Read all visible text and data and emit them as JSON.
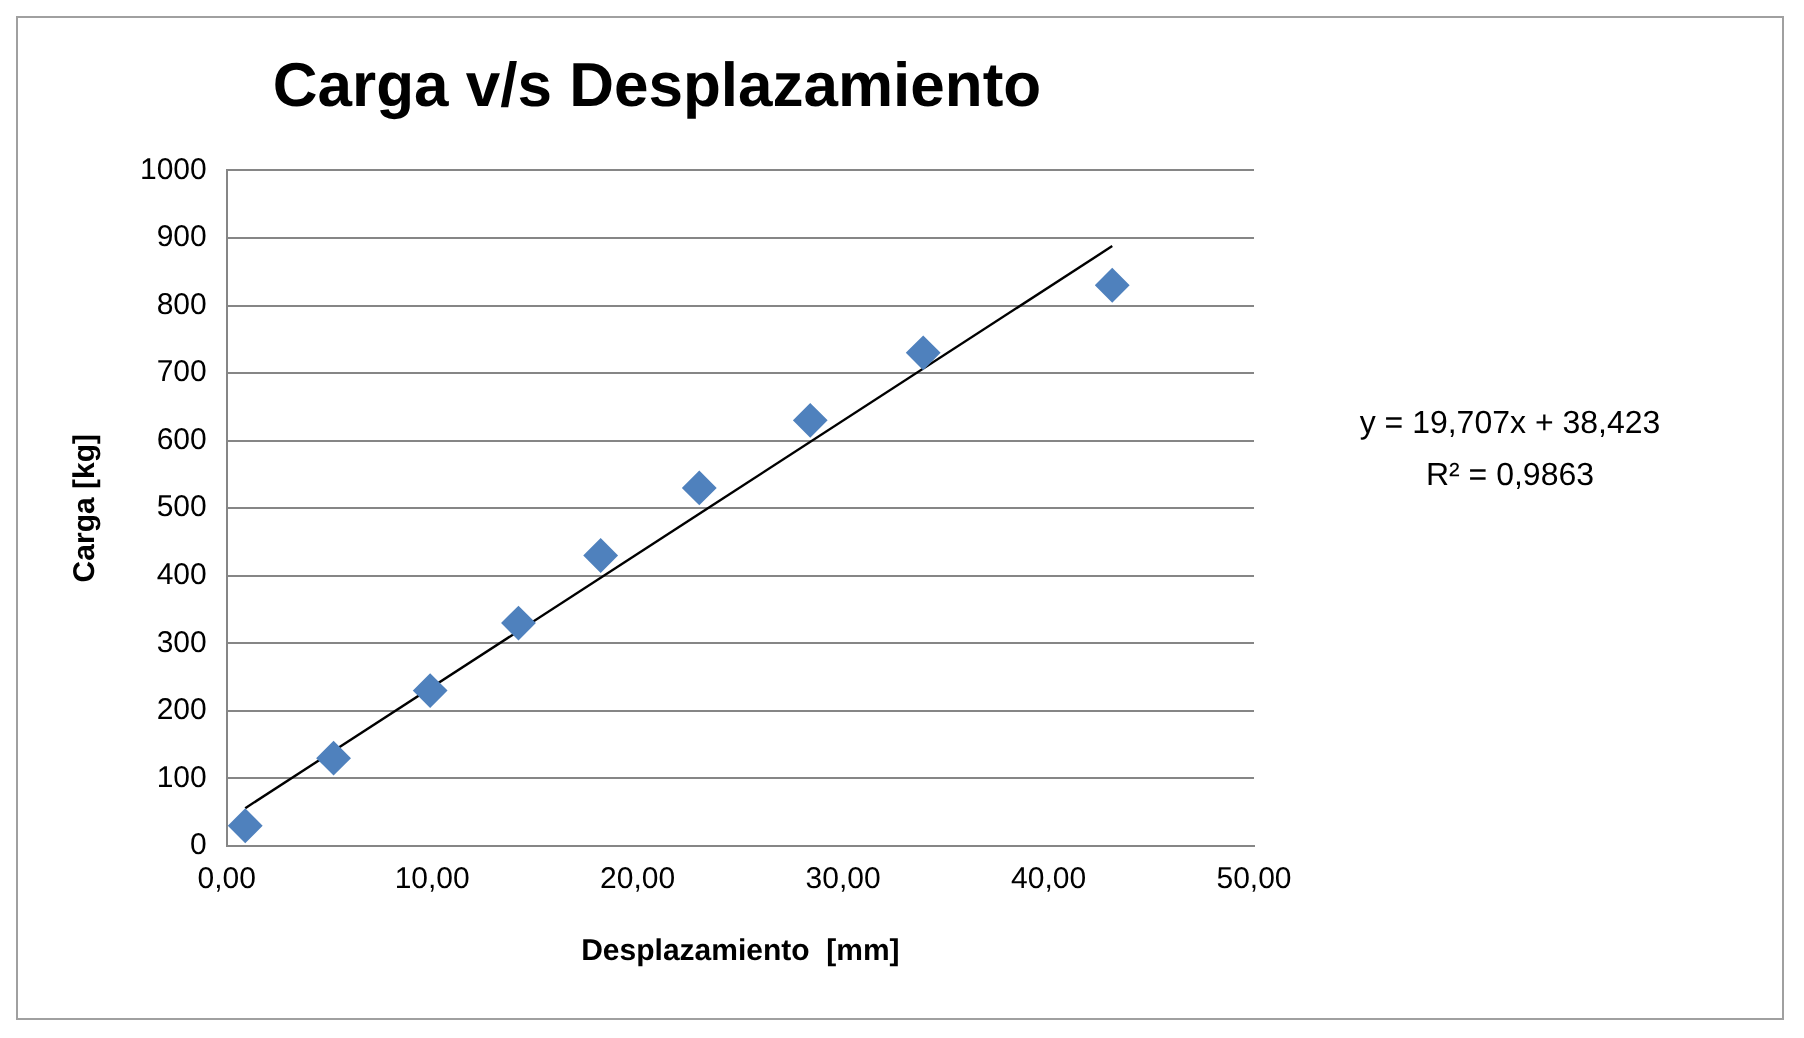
{
  "chart_data": {
    "type": "scatter",
    "title": "Carga v/s Desplazamiento",
    "xlabel": "Desplazamiento  [mm]",
    "ylabel": "Carga [kg]",
    "series": [
      {
        "type": "scatter",
        "color": "#4f81bd",
        "marker": "diamond",
        "x": [
          0.9,
          5.2,
          9.9,
          14.2,
          18.2,
          23.0,
          28.4,
          33.9,
          43.1
        ],
        "values": [
          30,
          130,
          230,
          330,
          430,
          530,
          630,
          730,
          830
        ]
      },
      {
        "type": "line",
        "color": "#000000",
        "marker": "none",
        "x": [
          0.9,
          43.1
        ],
        "values": [
          56,
          888
        ]
      }
    ],
    "xlim": [
      0,
      50
    ],
    "xticks": [
      {
        "value": 0,
        "label": "0,00"
      },
      {
        "value": 10,
        "label": "10,00"
      },
      {
        "value": 20,
        "label": "20,00"
      },
      {
        "value": 30,
        "label": "30,00"
      },
      {
        "value": 40,
        "label": "40,00"
      },
      {
        "value": 50,
        "label": "50,00"
      }
    ],
    "ylim": [
      0,
      1000
    ],
    "yticks": [
      0,
      100,
      200,
      300,
      400,
      500,
      600,
      700,
      800,
      900,
      1000
    ],
    "annotations": [
      "y = 19,707x + 38,423",
      "R² = 0,9863"
    ],
    "grid": "y",
    "legend": false
  }
}
